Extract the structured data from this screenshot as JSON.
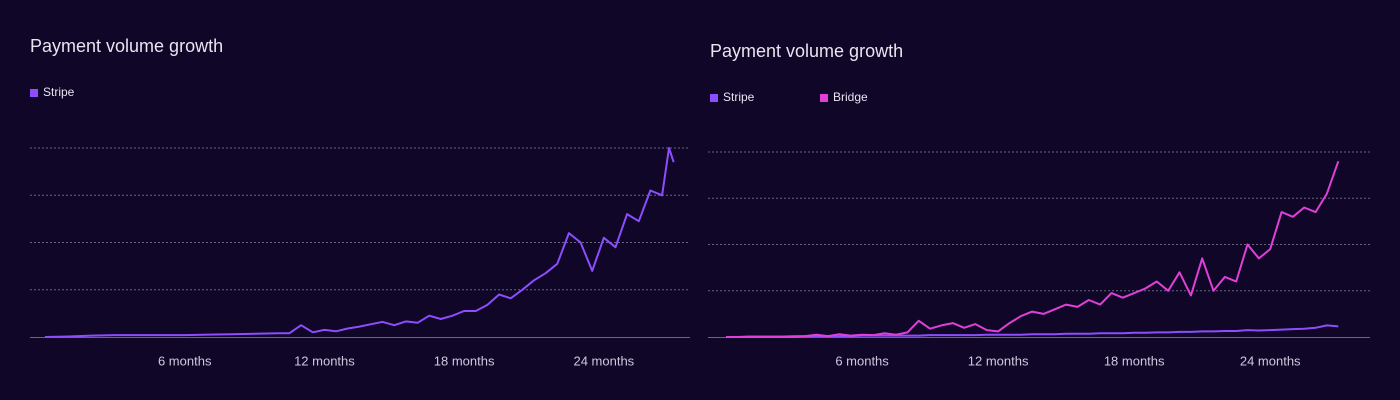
{
  "chart_data": [
    {
      "type": "line",
      "title": "Payment volume growth",
      "x": [
        0,
        1,
        2,
        3,
        4,
        5,
        6,
        7,
        8,
        9,
        10,
        10.5,
        11,
        11.5,
        12,
        12.5,
        13,
        13.5,
        14,
        14.5,
        15,
        15.5,
        16,
        16.5,
        17,
        17.5,
        18,
        18.5,
        19,
        19.5,
        20,
        20.5,
        21,
        21.5,
        22,
        22.5,
        23,
        23.5,
        24,
        24.5,
        25,
        25.5,
        26,
        26.5,
        26.8,
        27
      ],
      "series": [
        {
          "name": "Stripe",
          "color": "#8d4dff",
          "values": [
            0,
            0.01,
            0.03,
            0.04,
            0.04,
            0.04,
            0.04,
            0.05,
            0.06,
            0.07,
            0.08,
            0.08,
            0.25,
            0.1,
            0.15,
            0.12,
            0.18,
            0.22,
            0.27,
            0.32,
            0.25,
            0.33,
            0.3,
            0.45,
            0.38,
            0.45,
            0.55,
            0.55,
            0.68,
            0.9,
            0.82,
            1.0,
            1.2,
            1.35,
            1.55,
            2.2,
            2.0,
            1.4,
            2.1,
            1.9,
            2.6,
            2.45,
            3.1,
            3.0,
            4.0,
            3.7
          ]
        }
      ],
      "xlim": [
        0,
        27.7
      ],
      "ylim": [
        0,
        4
      ],
      "xticks": [
        {
          "value": 6,
          "label": "6 months"
        },
        {
          "value": 12,
          "label": "12 months"
        },
        {
          "value": 18,
          "label": "18 months"
        },
        {
          "value": 24,
          "label": "24 months"
        }
      ],
      "ygrid": [
        1,
        2,
        3,
        4
      ],
      "grid": true
    },
    {
      "type": "line",
      "title": "Payment volume growth",
      "x": [
        0,
        0.5,
        1,
        1.5,
        2,
        2.5,
        3,
        3.5,
        4,
        4.5,
        5,
        5.5,
        6,
        6.5,
        7,
        7.5,
        8,
        8.5,
        9,
        9.5,
        10,
        10.5,
        11,
        11.5,
        12,
        12.5,
        13,
        13.5,
        14,
        14.5,
        15,
        15.5,
        16,
        16.5,
        17,
        17.5,
        18,
        18.5,
        19,
        19.5,
        20,
        20.5,
        21,
        21.5,
        22,
        22.5,
        23,
        23.5,
        24,
        24.5,
        25,
        25.5,
        26,
        26.5,
        27
      ],
      "series": [
        {
          "name": "Stripe",
          "color": "#8d4dff",
          "values": [
            0,
            0,
            0.01,
            0.01,
            0.01,
            0.01,
            0.02,
            0.02,
            0.02,
            0.02,
            0.02,
            0.02,
            0.03,
            0.03,
            0.03,
            0.03,
            0.03,
            0.03,
            0.04,
            0.04,
            0.04,
            0.04,
            0.04,
            0.05,
            0.05,
            0.05,
            0.05,
            0.06,
            0.06,
            0.06,
            0.07,
            0.07,
            0.07,
            0.08,
            0.08,
            0.08,
            0.09,
            0.09,
            0.1,
            0.1,
            0.11,
            0.11,
            0.12,
            0.12,
            0.13,
            0.13,
            0.15,
            0.14,
            0.15,
            0.16,
            0.17,
            0.18,
            0.2,
            0.25,
            0.23
          ]
        },
        {
          "name": "Bridge",
          "color": "#e040d8",
          "values": [
            0,
            0,
            0,
            0,
            0,
            0,
            0,
            0.02,
            0.05,
            0.02,
            0.06,
            0.03,
            0.05,
            0.04,
            0.08,
            0.05,
            0.1,
            0.35,
            0.18,
            0.25,
            0.3,
            0.2,
            0.28,
            0.15,
            0.12,
            0.3,
            0.45,
            0.55,
            0.5,
            0.6,
            0.7,
            0.65,
            0.8,
            0.7,
            0.95,
            0.85,
            0.95,
            1.05,
            1.2,
            1.0,
            1.4,
            0.9,
            1.7,
            1.0,
            1.3,
            1.2,
            2.0,
            1.7,
            1.9,
            2.7,
            2.6,
            2.8,
            2.7,
            3.1,
            3.8
          ]
        }
      ],
      "xlim": [
        0,
        28.4
      ],
      "ylim": [
        0,
        4
      ],
      "xticks": [
        {
          "value": 6,
          "label": "6 months"
        },
        {
          "value": 12,
          "label": "12 months"
        },
        {
          "value": 18,
          "label": "18 months"
        },
        {
          "value": 24,
          "label": "24 months"
        }
      ],
      "ygrid": [
        1,
        2,
        3,
        4
      ],
      "grid": true
    }
  ]
}
